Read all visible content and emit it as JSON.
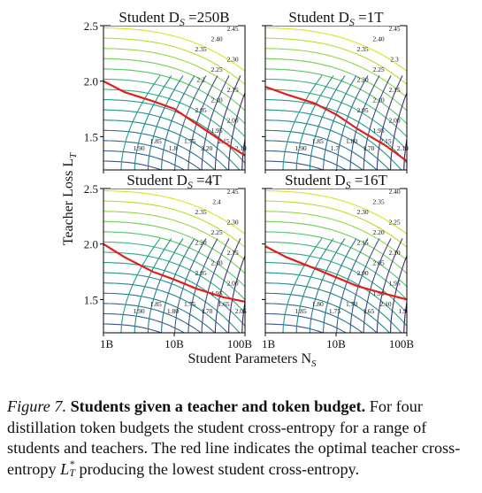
{
  "figure": {
    "y_axis_label": "Teacher Loss L",
    "y_axis_label_sub": "T",
    "x_axis_label": "Student Parameters N",
    "x_axis_label_sub": "S"
  },
  "chart_data": [
    {
      "type": "contour",
      "title": "Student D_S =250B",
      "title_prefix": "Student D",
      "title_sub": "S",
      "title_suffix": " =250B",
      "xlabel": "Student Parameters N_S",
      "ylabel": "Teacher Loss L_T",
      "xscale": "log",
      "xlim": [
        "1B",
        "100B"
      ],
      "x_ticks": [
        "1B",
        "10B",
        "100B"
      ],
      "ylim": [
        1.2,
        2.5
      ],
      "y_ticks": [
        "1.5",
        "2.0",
        "2.5"
      ],
      "colormap": "viridis",
      "contour_labels": [
        "2.45",
        "2.40",
        "2.35",
        "2.30",
        "2.25",
        "2.2",
        "2.15",
        "2.10",
        "2.05",
        "2.00",
        "1.95",
        "1.90",
        "1.85",
        "1.8",
        "1.75",
        "2.20",
        "2.15",
        "2.10"
      ],
      "optimal_teacher_loss": [
        {
          "x": "1B",
          "y": 2.0
        },
        {
          "x": "2B",
          "y": 1.9
        },
        {
          "x": "5B",
          "y": 1.82
        },
        {
          "x": "10B",
          "y": 1.75
        },
        {
          "x": "20B",
          "y": 1.62
        },
        {
          "x": "50B",
          "y": 1.45
        },
        {
          "x": "100B",
          "y": 1.33
        }
      ]
    },
    {
      "type": "contour",
      "title": "Student D_S =1T",
      "title_prefix": "Student D",
      "title_sub": "S",
      "title_suffix": " =1T",
      "xlabel": "Student Parameters N_S",
      "ylabel": "Teacher Loss L_T",
      "xscale": "log",
      "xlim": [
        "1B",
        "100B"
      ],
      "x_ticks": [
        "1B",
        "10B",
        "100B"
      ],
      "ylim": [
        1.2,
        2.5
      ],
      "y_ticks": [
        "1.5",
        "2.0",
        "2.5"
      ],
      "colormap": "viridis",
      "contour_labels": [
        "2.45",
        "2.40",
        "2.35",
        "2.3",
        "2.25",
        "2.20",
        "2.15",
        "2.10",
        "2.05",
        "2.00",
        "1.95",
        "1.90",
        "1.85",
        "1.7",
        "1.80",
        "1.70",
        "2.15",
        "2.10"
      ],
      "optimal_teacher_loss": [
        {
          "x": "1B",
          "y": 1.95
        },
        {
          "x": "2B",
          "y": 1.88
        },
        {
          "x": "5B",
          "y": 1.8
        },
        {
          "x": "10B",
          "y": 1.7
        },
        {
          "x": "20B",
          "y": 1.57
        },
        {
          "x": "50B",
          "y": 1.42
        },
        {
          "x": "100B",
          "y": 1.28
        }
      ]
    },
    {
      "type": "contour",
      "title": "Student D_S =4T",
      "title_prefix": "Student D",
      "title_sub": "S",
      "title_suffix": " =4T",
      "xlabel": "Student Parameters N_S",
      "ylabel": "Teacher Loss L_T",
      "xscale": "log",
      "xlim": [
        "1B",
        "100B"
      ],
      "x_ticks": [
        "1B",
        "10B",
        "100B"
      ],
      "ylim": [
        1.2,
        2.5
      ],
      "y_ticks": [
        "1.5",
        "2.0",
        "2.5"
      ],
      "colormap": "viridis",
      "contour_labels": [
        "2.45",
        "2.4",
        "2.35",
        "2.30",
        "2.25",
        "2.20",
        "2.15",
        "2.10",
        "2.05",
        "2.00",
        "1.95",
        "1.90",
        "1.85",
        "1.80",
        "1.75",
        "1.70",
        "1.65",
        "2.05"
      ],
      "optimal_teacher_loss": [
        {
          "x": "1B",
          "y": 2.0
        },
        {
          "x": "2B",
          "y": 1.88
        },
        {
          "x": "5B",
          "y": 1.75
        },
        {
          "x": "10B",
          "y": 1.68
        },
        {
          "x": "20B",
          "y": 1.6
        },
        {
          "x": "50B",
          "y": 1.52
        },
        {
          "x": "100B",
          "y": 1.48
        }
      ]
    },
    {
      "type": "contour",
      "title": "Student D_S =16T",
      "title_prefix": "Student D",
      "title_sub": "S",
      "title_suffix": " =16T",
      "xlabel": "Student Parameters N_S",
      "ylabel": "Teacher Loss L_T",
      "xscale": "log",
      "xlim": [
        "1B",
        "100B"
      ],
      "x_ticks": [
        "1B",
        "10B",
        "100B"
      ],
      "ylim": [
        1.2,
        2.5
      ],
      "y_ticks": [
        "1.5",
        "2.0",
        "2.5"
      ],
      "colormap": "viridis",
      "contour_labels": [
        "2.40",
        "2.35",
        "2.30",
        "2.25",
        "2.20",
        "2.15",
        "2.10",
        "2.05",
        "2.00",
        "1.95",
        "1.90",
        "1.85",
        "1.80",
        "1.75",
        "1.70",
        "1.65",
        "2.10",
        "1.9"
      ],
      "optimal_teacher_loss": [
        {
          "x": "1B",
          "y": 1.98
        },
        {
          "x": "2B",
          "y": 1.88
        },
        {
          "x": "5B",
          "y": 1.78
        },
        {
          "x": "10B",
          "y": 1.7
        },
        {
          "x": "20B",
          "y": 1.62
        },
        {
          "x": "50B",
          "y": 1.55
        },
        {
          "x": "100B",
          "y": 1.5
        }
      ]
    }
  ],
  "caption": {
    "figure_label": "Figure 7.",
    "heading": "Students given a teacher and token budget.",
    "body_1": " For four distillation token budgets the student cross-entropy for a range of students and teachers. The red line indicates the optimal teacher cross-entropy ",
    "math_base": "L",
    "math_sup": "*",
    "math_sub": "T",
    "body_2": " producing the lowest student cross-entropy."
  },
  "colors": {
    "optimal_line": "#e0201b",
    "axis": "#000000",
    "viridis_low": "#440154",
    "viridis_high": "#fde725"
  }
}
